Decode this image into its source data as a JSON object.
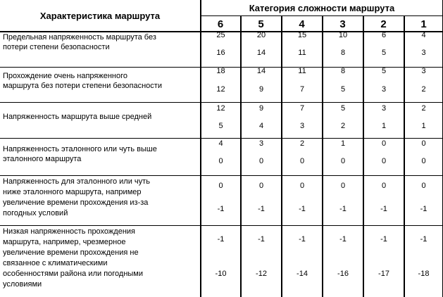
{
  "header": {
    "characteristic": "Характеристика маршрута",
    "category": "Категория сложности маршрута",
    "categories": [
      "6",
      "5",
      "4",
      "3",
      "2",
      "1"
    ]
  },
  "rows": [
    {
      "label": "Предельная напряженность маршрута без потери степени безопасности",
      "lines": [
        "Предельная напряженность маршрута без",
        "потери степени безопасности"
      ],
      "top": [
        "25",
        "20",
        "15",
        "10",
        "6",
        "4"
      ],
      "bottom": [
        "16",
        "14",
        "11",
        "8",
        "5",
        "3"
      ]
    },
    {
      "label": "Прохождение очень напряженного маршрута без потери степени безопасности",
      "lines": [
        "Прохождение очень напряженного",
        "маршрута без потери степени безопасности"
      ],
      "top": [
        "18",
        "14",
        "11",
        "8",
        "5",
        "3"
      ],
      "bottom": [
        "12",
        "9",
        "7",
        "5",
        "3",
        "2"
      ]
    },
    {
      "label": "Напряженность маршрута выше средней",
      "lines": [
        "Напряженность маршрута выше средней"
      ],
      "top": [
        "12",
        "9",
        "7",
        "5",
        "3",
        "2"
      ],
      "bottom": [
        "5",
        "4",
        "3",
        "2",
        "1",
        "1"
      ]
    },
    {
      "label": "Напряженность эталонного или чуть выше эталонного маршрута",
      "lines": [
        "Напряженность эталонного или чуть выше",
        "эталонного маршрута"
      ],
      "top": [
        "4",
        "3",
        "2",
        "1",
        "0",
        "0"
      ],
      "bottom": [
        "0",
        "0",
        "0",
        "0",
        "0",
        "0"
      ]
    },
    {
      "label": "Напряженность для эталонного или чуть ниже эталонного маршрута, например увеличение времени прохождения из-за погодных условий",
      "lines": [
        "Напряженность для эталонного или чуть",
        "ниже эталонного маршрута, например",
        "увеличение времени прохождения из-за",
        "погодных условий"
      ],
      "top": [
        "0",
        "0",
        "0",
        "0",
        "0",
        "0"
      ],
      "bottom": [
        "-1",
        "-1",
        "-1",
        "-1",
        "-1",
        "-1"
      ]
    },
    {
      "label": "Низкая напряженность прохождения маршрута, например, чрезмерное увеличение времени прохождения не связанное с климатическими особенностями района или погодными условиями",
      "lines": [
        "Низкая напряженность прохождения",
        "маршрута, например, чрезмерное",
        "увеличение времени прохождения не",
        "связанное с климатическими",
        "особенностями района или погодными",
        "условиями"
      ],
      "top": [
        "-1",
        "-1",
        "-1",
        "-1",
        "-1",
        "-1"
      ],
      "bottom": [
        "-10",
        "-12",
        "-14",
        "-16",
        "-17",
        "-18"
      ]
    }
  ]
}
